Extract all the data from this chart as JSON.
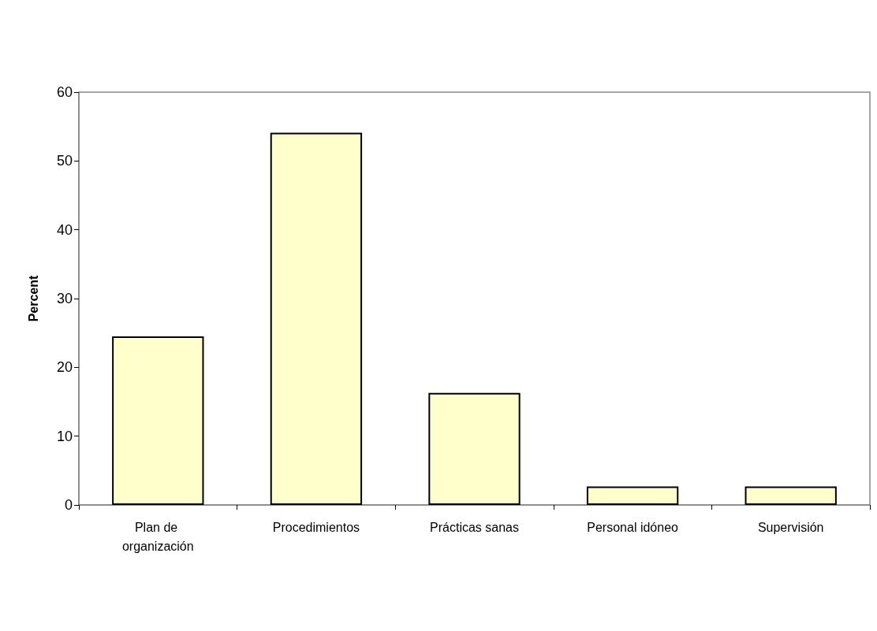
{
  "chart_data": {
    "type": "bar",
    "ylabel": "Percent",
    "categories": [
      "Plan de organización",
      "Procedimientos",
      "Prácticas sanas",
      "Personal idóneo",
      "Supervisión"
    ],
    "values": [
      24.5,
      54.1,
      16.3,
      2.7,
      2.7
    ],
    "color": "#ffffcc",
    "ylim": [
      0,
      60
    ],
    "yticks": [
      0,
      10,
      20,
      30,
      40,
      50,
      60
    ],
    "grid": false
  }
}
